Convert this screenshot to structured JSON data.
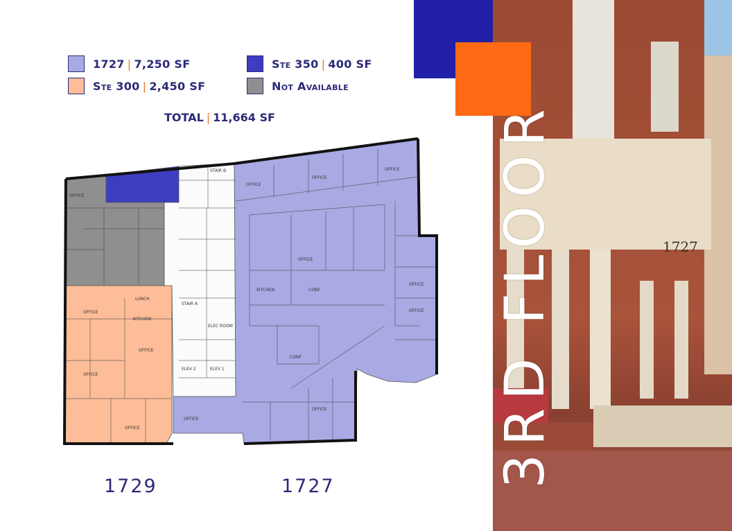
{
  "legend": [
    {
      "name": "1727",
      "area": "7,250 SF",
      "color": "#a9a9e4"
    },
    {
      "name": "Ste 350",
      "area": "400 SF",
      "color": "#3d3dc2"
    },
    {
      "name": "Ste 300",
      "area": "2,450 SF",
      "color": "#fcbd98"
    },
    {
      "name": "Not Available",
      "area": "",
      "color": "#8f8f8f"
    }
  ],
  "total": {
    "label": "TOTAL",
    "area": "11,664 SF"
  },
  "plan": {
    "buildings": [
      "1729",
      "1727"
    ],
    "rooms": {
      "stair_a": "STAIR A",
      "stair_b": "STAIR B",
      "elev_1": "ELEV 1",
      "elev_2": "ELEV 2",
      "elec_room": "ELEC ROOM",
      "office": "OFFICE",
      "kitchen": "KITCHEN",
      "lunch": "LUNCH",
      "conf": "CONF"
    }
  },
  "photo": {
    "floor_title": "3RD FLOOR",
    "address_plaque": "1727"
  },
  "colors": {
    "accent_blue": "#2320a8",
    "accent_orange": "#fe6a14",
    "text": "#2b2a78",
    "separator": "#e8772e"
  }
}
